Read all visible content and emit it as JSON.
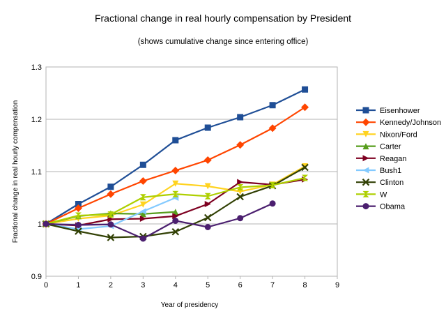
{
  "chart_data": {
    "type": "line",
    "title": "Fractional change in real hourly compensation by President",
    "subtitle": "(shows cumulative change since entering office)",
    "xlabel": "Year of presidency",
    "ylabel": "Fractional change in real hourly compensation",
    "xlim": [
      0,
      9
    ],
    "ylim": [
      0.9,
      1.3
    ],
    "x_ticks": [
      "0",
      "1",
      "2",
      "3",
      "4",
      "5",
      "6",
      "7",
      "8",
      "9"
    ],
    "y_ticks": [
      "0.9",
      "1",
      "1.1",
      "1.2",
      "1.3"
    ],
    "grid": true,
    "legend_position": "right",
    "series": [
      {
        "name": "Eisenhower",
        "color": "#1f4e96",
        "marker": "square",
        "x": [
          0,
          1,
          2,
          3,
          4,
          5,
          6,
          7,
          8
        ],
        "values": [
          1.0,
          1.038,
          1.071,
          1.113,
          1.16,
          1.184,
          1.204,
          1.227,
          1.257
        ]
      },
      {
        "name": "Kennedy/Johnson",
        "color": "#ff4500",
        "marker": "diamond",
        "x": [
          0,
          1,
          2,
          3,
          4,
          5,
          6,
          7,
          8
        ],
        "values": [
          1.0,
          1.03,
          1.057,
          1.082,
          1.102,
          1.122,
          1.151,
          1.183,
          1.223
        ]
      },
      {
        "name": "Nixon/Ford",
        "color": "#ffd320",
        "marker": "triangle-down",
        "x": [
          0,
          1,
          2,
          3,
          4,
          5,
          6,
          7,
          8
        ],
        "values": [
          1.0,
          1.01,
          1.016,
          1.037,
          1.077,
          1.072,
          1.062,
          1.075,
          1.11
        ]
      },
      {
        "name": "Carter",
        "color": "#579d1c",
        "marker": "triangle-up",
        "x": [
          0,
          1,
          2,
          3,
          4
        ],
        "values": [
          1.0,
          1.015,
          1.02,
          1.019,
          1.023
        ]
      },
      {
        "name": "Reagan",
        "color": "#7e0021",
        "marker": "triangle-right",
        "x": [
          0,
          1,
          2,
          3,
          4,
          5,
          6,
          7,
          8
        ],
        "values": [
          1.0,
          0.997,
          1.009,
          1.01,
          1.015,
          1.038,
          1.08,
          1.075,
          1.085
        ]
      },
      {
        "name": "Bush1",
        "color": "#83caff",
        "marker": "triangle-left",
        "x": [
          0,
          1,
          2,
          3,
          4
        ],
        "values": [
          1.0,
          0.99,
          0.996,
          1.024,
          1.05
        ]
      },
      {
        "name": "Clinton",
        "color": "#314004",
        "marker": "x",
        "x": [
          0,
          1,
          2,
          3,
          4,
          5,
          6,
          7,
          8
        ],
        "values": [
          1.0,
          0.986,
          0.974,
          0.976,
          0.985,
          1.012,
          1.052,
          1.073,
          1.108
        ]
      },
      {
        "name": "W",
        "color": "#aecf00",
        "marker": "hourglass",
        "x": [
          0,
          1,
          2,
          3,
          4,
          5,
          6,
          7,
          8
        ],
        "values": [
          1.0,
          1.016,
          1.018,
          1.051,
          1.057,
          1.053,
          1.07,
          1.074,
          1.088
        ]
      },
      {
        "name": "Obama",
        "color": "#4b1f6f",
        "marker": "circle",
        "x": [
          0,
          1,
          2,
          3,
          4,
          5,
          6,
          7
        ],
        "values": [
          1.0,
          0.998,
          0.999,
          0.972,
          1.006,
          0.994,
          1.011,
          1.039
        ]
      }
    ]
  }
}
